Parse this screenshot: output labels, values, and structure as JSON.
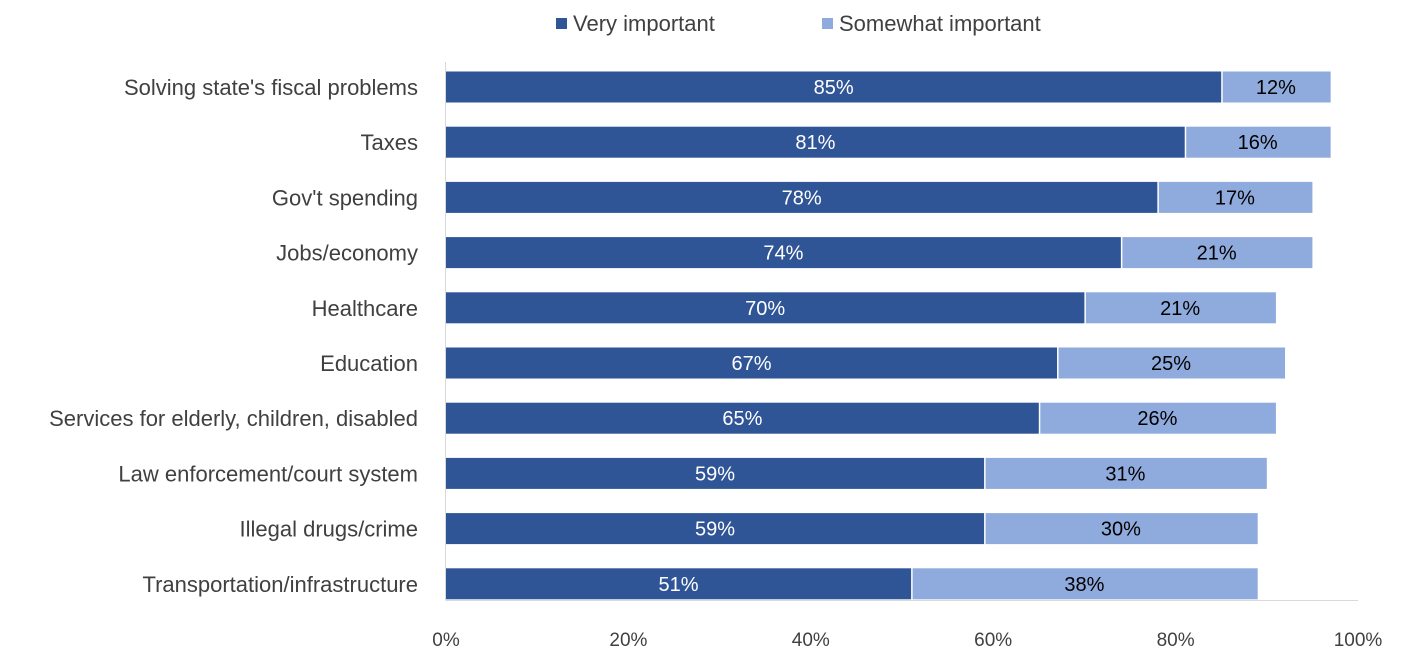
{
  "chart_data": {
    "type": "bar",
    "orientation": "horizontal",
    "stacked": true,
    "categories": [
      "Solving state's fiscal problems",
      "Taxes",
      "Gov't spending",
      "Jobs/economy",
      "Healthcare",
      "Education",
      "Services for elderly, children, disabled",
      "Law enforcement/court system",
      "Illegal drugs/crime",
      "Transportation/infrastructure"
    ],
    "series": [
      {
        "name": "Very important",
        "values": [
          85,
          81,
          78,
          74,
          70,
          67,
          65,
          59,
          59,
          51
        ],
        "color": "#2F5597",
        "label_color": "#ffffff"
      },
      {
        "name": "Somewhat important",
        "values": [
          12,
          16,
          17,
          21,
          21,
          25,
          26,
          31,
          30,
          38
        ],
        "color": "#8FAADC",
        "label_color": "#000000"
      }
    ],
    "xlim": [
      0,
      100
    ],
    "xticks": [
      0,
      20,
      40,
      60,
      80,
      100
    ],
    "value_suffix": "%",
    "grid": false,
    "legend_position": "top"
  }
}
